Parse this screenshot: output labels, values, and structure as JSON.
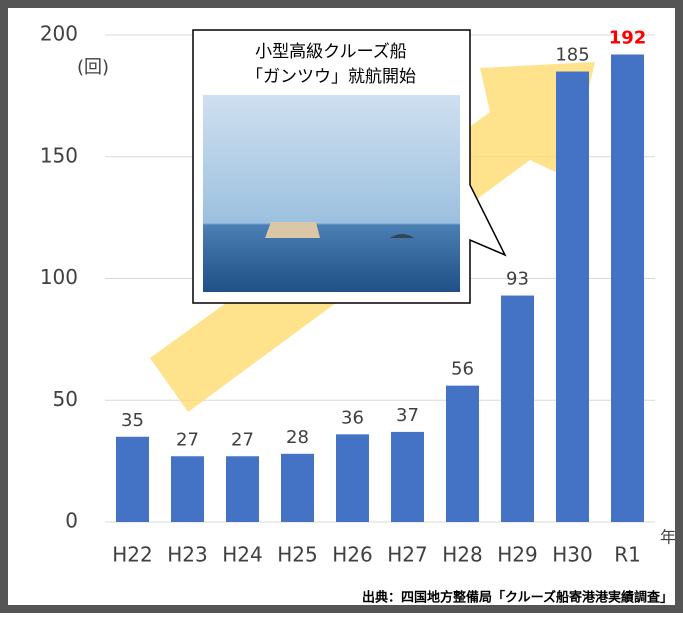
{
  "chart_data": {
    "type": "bar",
    "y_axis_label": "(回)",
    "x_axis_label": "年",
    "source": "出典：四国地方整備局「クルーズ船寄港港実績調査」",
    "annotation": [
      "小型高級クルーズ船",
      "「ガンツウ」就航開始"
    ],
    "categories": [
      "H22",
      "H23",
      "H24",
      "H25",
      "H26",
      "H27",
      "H28",
      "H29",
      "H30",
      "R1"
    ],
    "values": [
      35,
      27,
      27,
      28,
      36,
      37,
      56,
      93,
      185,
      192
    ],
    "color": "#4472c4",
    "ylim": [
      0,
      200
    ],
    "yticks": [
      0,
      50,
      100,
      150,
      200
    ],
    "grid": true
  }
}
